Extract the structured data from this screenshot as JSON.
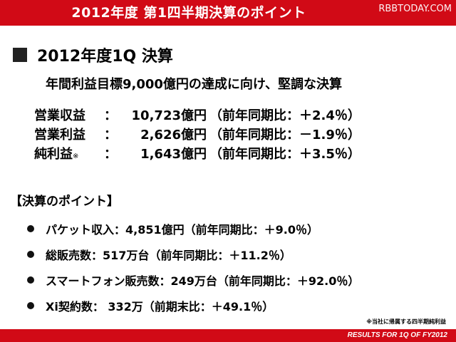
{
  "header": {
    "title": "2012年度 第1四半期決算のポイント",
    "watermark": "RBBTODAY.COM",
    "bar_color": "#d10a16"
  },
  "heading": {
    "square_icon": "black-square",
    "text": "2012年度1Q 決算"
  },
  "subtitle": "年間利益目標9,000億円の達成に向け、堅調な決算",
  "results": [
    {
      "label": "営業収益",
      "note": "",
      "value": "10,723億円",
      "compare": "（前年同期比：＋2.4％）"
    },
    {
      "label": "営業利益",
      "note": "",
      "value": "2,626億円",
      "compare": "（前年同期比：－1.9％）"
    },
    {
      "label": "純利益",
      "note": "※",
      "value": "1,643億円",
      "compare": "（前年同期比：＋3.5％）"
    }
  ],
  "colon": "：",
  "section_title": "【決算のポイント】",
  "points": [
    {
      "icon": "bullet-dot",
      "text": "パケット収入：4,851億円（前年同期比：＋9.0％）"
    },
    {
      "icon": "bullet-dot",
      "text": "総販売数：517万台（前年同期比：＋11.2％）"
    },
    {
      "icon": "bullet-dot",
      "text": "スマートフォン販売数：249万台（前年同期比：＋92.0％）"
    },
    {
      "icon": "bullet-dot",
      "text": "Xi契約数： 332万（前期末比：＋49.1％）"
    }
  ],
  "footnote": "※当社に帰属する四半期純利益",
  "footer": {
    "text": "RESULTS FOR 1Q OF FY2012"
  }
}
